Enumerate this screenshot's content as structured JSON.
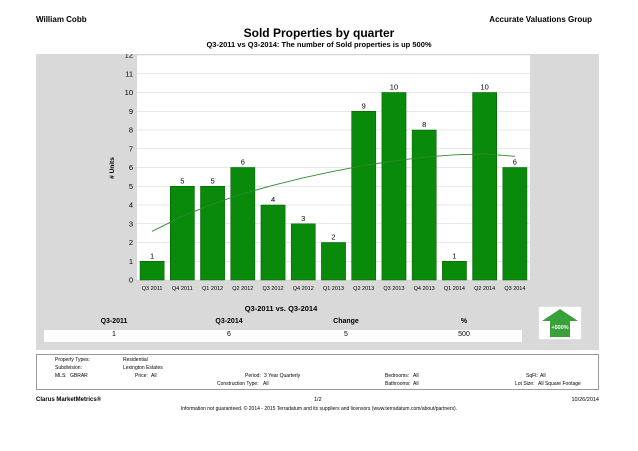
{
  "header": {
    "agent": "William  Cobb",
    "company": "Accurate Valuations Group",
    "title": "Sold Properties by quarter",
    "subtitle": "Q3-2011 vs Q3-2014: The number of Sold   properties is up 500%"
  },
  "chart_data": {
    "type": "bar",
    "categories": [
      "Q3 2011",
      "Q4 2011",
      "Q1 2012",
      "Q2 2012",
      "Q3 2012",
      "Q4 2012",
      "Q1 2013",
      "Q2 2013",
      "Q3 2013",
      "Q4 2013",
      "Q1 2014",
      "Q2 2014",
      "Q3 2014"
    ],
    "values": [
      1,
      5,
      5,
      6,
      4,
      3,
      2,
      9,
      10,
      8,
      1,
      10,
      6
    ],
    "trend": [
      2.6,
      3.4,
      4.05,
      4.6,
      5.05,
      5.45,
      5.8,
      6.1,
      6.35,
      6.55,
      6.68,
      6.72,
      6.6
    ],
    "ylabel": "# Units",
    "ylim": [
      0,
      12
    ],
    "yticks": [
      0,
      1,
      2,
      3,
      4,
      5,
      6,
      7,
      8,
      9,
      10,
      11,
      12
    ],
    "grid": true,
    "colors": {
      "bar": "#0a8a0a",
      "trend": "#2e8b2e",
      "plot_bg": "#ffffff",
      "panel_bg": "#d9d9d9"
    }
  },
  "summary": {
    "title": "Q3-2011 vs. Q3-2014",
    "headers": [
      "Q3-2011",
      "Q3-2014",
      "Change",
      "%"
    ],
    "values": [
      "1",
      "6",
      "5",
      "500"
    ],
    "badge": "+500%",
    "badge_color": "#3aa03a"
  },
  "filters": {
    "property_types_label": "Property Types:",
    "property_types_value": "Residential",
    "subdivision_label": "Subdivision:",
    "subdivision_value": "Lexington Estates",
    "mls_label": "MLS:",
    "mls_value": "GBRAR",
    "price_label": "Price:",
    "price_value": "All",
    "period_label": "Period:",
    "period_value": "3 Year Quarterly",
    "construction_label": "Construction Type:",
    "construction_value": "All",
    "bedrooms_label": "Bedrooms:",
    "bedrooms_value": "All",
    "bathrooms_label": "Bathrooms:",
    "bathrooms_value": "All",
    "sqft_label": "SqFt:",
    "sqft_value": "All",
    "lotsize_label": "Lot Size:",
    "lotsize_value": "All Square Footage"
  },
  "footer": {
    "brand": "Clarus MarketMetrics®",
    "page": "1/2",
    "date": "10/26/2014",
    "disclaimer": "Information not guaranteed. © 2014 - 2015 Terradatum and its suppliers and licensors (www.terradatum.com/about/partners)."
  }
}
